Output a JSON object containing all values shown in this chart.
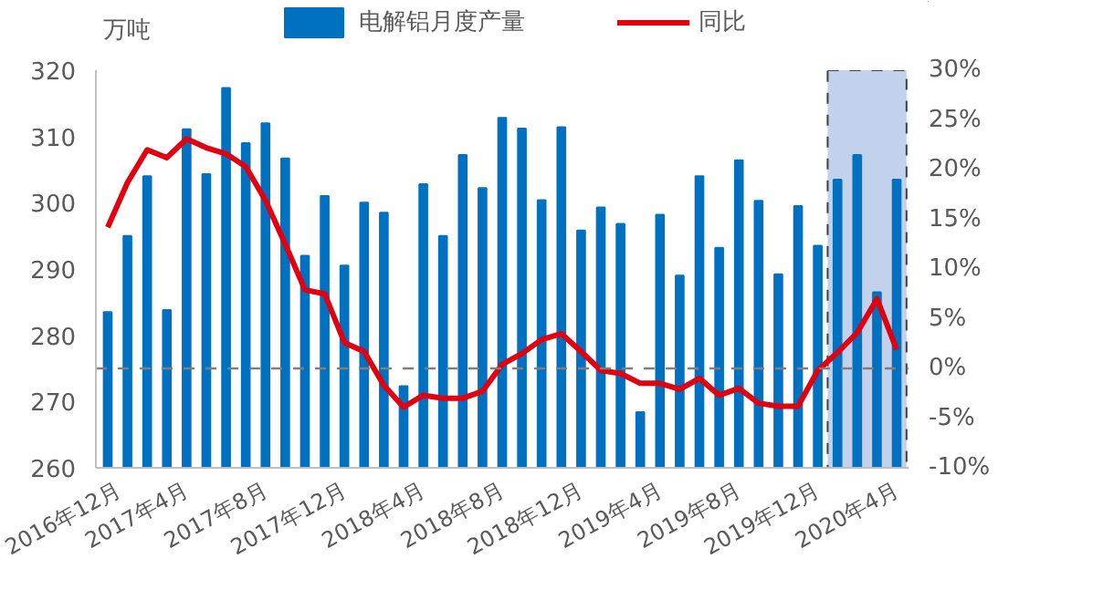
{
  "chart_data": {
    "type": "bar",
    "ylabel": "万吨",
    "categories": [
      "2016年12月",
      null,
      null,
      null,
      "2017年4月",
      null,
      null,
      null,
      "2017年8月",
      null,
      null,
      null,
      "2017年12月",
      null,
      null,
      null,
      "2018年4月",
      null,
      null,
      null,
      "2018年8月",
      null,
      null,
      null,
      "2018年12月",
      null,
      null,
      null,
      "2019年4月",
      null,
      null,
      null,
      "2019年8月",
      null,
      null,
      null,
      "2019年12月",
      null,
      null,
      null,
      "2020年4月"
    ],
    "series": [
      {
        "name": "电解铝月度产量",
        "color": "#0070c0",
        "values": [
          283.5,
          295,
          304,
          283.8,
          311.1,
          304.3,
          317.3,
          309,
          312,
          306.7,
          292,
          301,
          290.5,
          300,
          298.5,
          272.3,
          302.8,
          295,
          307.2,
          302.2,
          312.8,
          311.2,
          300.4,
          311.4,
          295.8,
          299.3,
          296.8,
          268.4,
          298.2,
          289,
          304,
          293.2,
          306.4,
          300.3,
          289.2,
          299.5,
          293.5,
          303.5,
          307.2,
          286.5,
          303.5
        ]
      },
      {
        "name": "同比",
        "type": "line",
        "axis": "y2",
        "color": "#e00010",
        "values": [
          14.2,
          18.7,
          22.0,
          21.2,
          23.1,
          22.2,
          21.6,
          20.3,
          16.9,
          12.5,
          7.9,
          7.5,
          2.6,
          1.7,
          -1.7,
          -3.9,
          -2.7,
          -3.0,
          -3.0,
          -2.3,
          0.4,
          1.5,
          2.9,
          3.5,
          1.7,
          -0.2,
          -0.5,
          -1.5,
          -1.5,
          -2.1,
          -1.0,
          -2.7,
          -2.0,
          -3.5,
          -3.8,
          -3.8,
          -0.2,
          1.6,
          3.6,
          7.0,
          1.9
        ]
      }
    ],
    "ylim": [
      260,
      320
    ],
    "yticks": [
      260,
      270,
      280,
      290,
      300,
      310,
      320
    ],
    "y2lim": [
      -10,
      30
    ],
    "y2ticks": [
      {
        "value": -10,
        "label": "-10%"
      },
      {
        "value": -5,
        "label": "-5%"
      },
      {
        "value": 0,
        "label": "0%"
      },
      {
        "value": 5,
        "label": "5%"
      },
      {
        "value": 10,
        "label": "10%"
      },
      {
        "value": 15,
        "label": "15%"
      },
      {
        "value": 20,
        "label": "20%"
      },
      {
        "value": 25,
        "label": "25%"
      },
      {
        "value": 30,
        "label": "30%"
      }
    ],
    "ref_lines": [
      {
        "axis": "y2",
        "value": 0,
        "color": "#7f7f7f",
        "line_style": "dashed"
      }
    ],
    "legend": "top",
    "grid": false,
    "line_style": "solid",
    "marker": "none"
  }
}
